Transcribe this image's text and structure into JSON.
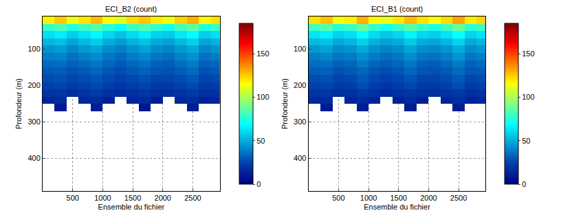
{
  "chart_data": [
    {
      "type": "heatmap",
      "title": "ECI_B2 (count)",
      "x_label": "Ensemble du fichier",
      "y_label": "Profondeur (m)",
      "x": [
        100,
        300,
        500,
        700,
        900,
        1100,
        1300,
        1500,
        1700,
        1900,
        2100,
        2300,
        2500,
        2700,
        2900
      ],
      "y": [
        20,
        40,
        60,
        80,
        100,
        120,
        140,
        160,
        180,
        200,
        220,
        240,
        260
      ],
      "z": [
        [
          118,
          125,
          112,
          120,
          128,
          115,
          110,
          122,
          126,
          119,
          113,
          124,
          130,
          117,
          121
        ],
        [
          78,
          82,
          74,
          80,
          85,
          76,
          70,
          79,
          83,
          77,
          72,
          81,
          86,
          75,
          79
        ],
        [
          62,
          65,
          58,
          63,
          68,
          60,
          55,
          61,
          66,
          59,
          57,
          64,
          69,
          58,
          62
        ],
        [
          52,
          54,
          48,
          53,
          57,
          50,
          46,
          51,
          55,
          49,
          47,
          53,
          58,
          48,
          51
        ],
        [
          44,
          46,
          41,
          45,
          48,
          42,
          39,
          43,
          47,
          42,
          40,
          45,
          49,
          41,
          44
        ],
        [
          39,
          40,
          36,
          39,
          42,
          37,
          34,
          38,
          41,
          37,
          35,
          40,
          43,
          36,
          38
        ],
        [
          34,
          35,
          32,
          34,
          37,
          33,
          30,
          33,
          36,
          32,
          31,
          35,
          38,
          32,
          33
        ],
        [
          30,
          31,
          28,
          30,
          33,
          29,
          27,
          30,
          32,
          29,
          28,
          31,
          34,
          28,
          30
        ],
        [
          27,
          28,
          25,
          27,
          29,
          26,
          24,
          26,
          28,
          25,
          25,
          27,
          30,
          25,
          26
        ],
        [
          24,
          25,
          22,
          24,
          26,
          23,
          21,
          23,
          25,
          22,
          22,
          24,
          26,
          22,
          23
        ],
        [
          20,
          21,
          18,
          20,
          22,
          19,
          17,
          19,
          21,
          18,
          18,
          20,
          22,
          18,
          19
        ],
        [
          14,
          16,
          null,
          15,
          17,
          13,
          null,
          14,
          16,
          12,
          null,
          15,
          17,
          13,
          14
        ],
        [
          null,
          10,
          null,
          null,
          11,
          null,
          null,
          null,
          9,
          null,
          null,
          null,
          12,
          null,
          null
        ]
      ],
      "xlim": [
        0,
        2950
      ],
      "xticks": [
        500,
        1000,
        1500,
        2000,
        2500
      ],
      "ylim": [
        490,
        10
      ],
      "yticks": [
        100,
        200,
        300,
        400
      ],
      "colorbar_range": [
        0,
        185
      ],
      "colorbar_ticks": [
        0,
        50,
        100,
        150
      ],
      "grid": true
    },
    {
      "type": "heatmap",
      "title": "ECI_B1 (count)",
      "x_label": "Ensemble du fichier",
      "y_label": "Profondeur (m)",
      "x": [
        100,
        300,
        500,
        700,
        900,
        1100,
        1300,
        1500,
        1700,
        1900,
        2100,
        2300,
        2500,
        2700,
        2900
      ],
      "y": [
        20,
        40,
        60,
        80,
        100,
        120,
        140,
        160,
        180,
        200,
        220,
        240,
        260
      ],
      "z": [
        [
          121,
          127,
          114,
          118,
          130,
          117,
          112,
          120,
          128,
          121,
          115,
          122,
          132,
          119,
          123
        ],
        [
          80,
          84,
          75,
          79,
          87,
          77,
          72,
          78,
          85,
          78,
          73,
          80,
          88,
          76,
          80
        ],
        [
          63,
          66,
          59,
          62,
          69,
          61,
          56,
          60,
          67,
          60,
          58,
          63,
          70,
          59,
          63
        ],
        [
          53,
          55,
          49,
          52,
          58,
          51,
          47,
          50,
          56,
          50,
          48,
          52,
          59,
          49,
          52
        ],
        [
          45,
          47,
          42,
          44,
          49,
          43,
          40,
          42,
          48,
          42,
          41,
          44,
          50,
          42,
          45
        ],
        [
          39,
          41,
          37,
          38,
          43,
          38,
          35,
          37,
          42,
          37,
          36,
          39,
          44,
          37,
          39
        ],
        [
          35,
          36,
          32,
          33,
          38,
          33,
          31,
          33,
          37,
          32,
          31,
          34,
          38,
          32,
          34
        ],
        [
          31,
          32,
          28,
          30,
          33,
          29,
          27,
          29,
          33,
          29,
          28,
          30,
          34,
          29,
          30
        ],
        [
          27,
          28,
          25,
          26,
          30,
          26,
          24,
          26,
          29,
          25,
          25,
          27,
          30,
          25,
          27
        ],
        [
          24,
          25,
          22,
          23,
          27,
          23,
          21,
          23,
          26,
          22,
          22,
          24,
          27,
          22,
          24
        ],
        [
          20,
          21,
          18,
          19,
          22,
          19,
          17,
          19,
          21,
          18,
          18,
          20,
          22,
          18,
          20
        ],
        [
          15,
          16,
          null,
          14,
          17,
          13,
          null,
          13,
          16,
          12,
          null,
          14,
          18,
          13,
          15
        ],
        [
          null,
          10,
          null,
          null,
          12,
          null,
          null,
          null,
          10,
          null,
          null,
          null,
          11,
          null,
          null
        ]
      ],
      "xlim": [
        0,
        2950
      ],
      "xticks": [
        500,
        1000,
        1500,
        2000,
        2500
      ],
      "ylim": [
        490,
        10
      ],
      "yticks": [
        100,
        200,
        300,
        400
      ],
      "colorbar_range": [
        0,
        185
      ],
      "colorbar_ticks": [
        0,
        50,
        100,
        150
      ],
      "grid": true
    }
  ]
}
